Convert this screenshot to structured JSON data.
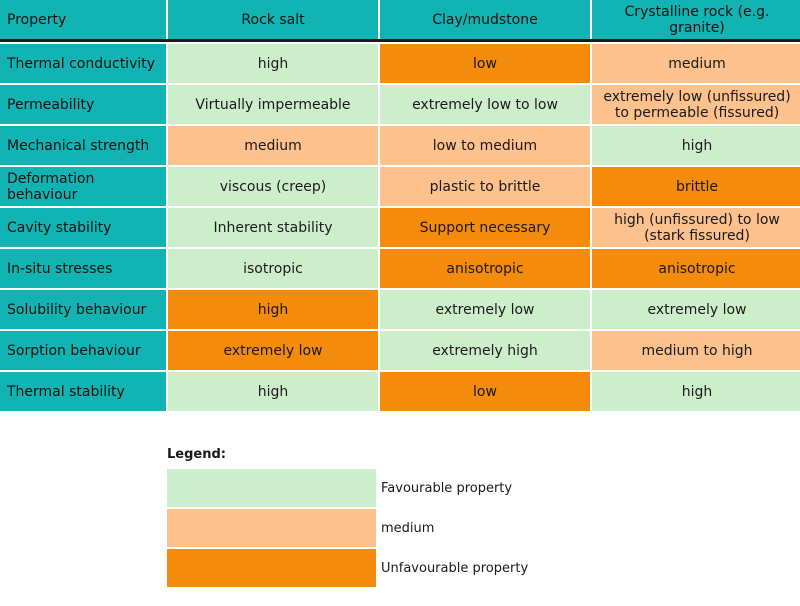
{
  "headers": [
    "Property",
    "Rock salt",
    "Clay/mudstone",
    "Crystalline rock (e.g. granite)"
  ],
  "rows": [
    {
      "property": "Thermal conductivity",
      "cells": [
        {
          "text": "high",
          "rating": "fav"
        },
        {
          "text": "low",
          "rating": "unf"
        },
        {
          "text": "medium",
          "rating": "med"
        }
      ]
    },
    {
      "property": "Permeability",
      "cells": [
        {
          "text": "Virtually impermeable",
          "rating": "fav"
        },
        {
          "text": "extremely low to low",
          "rating": "fav"
        },
        {
          "text": "extremely low (unfissured) to permeable (fissured)",
          "rating": "med"
        }
      ]
    },
    {
      "property": "Mechanical strength",
      "cells": [
        {
          "text": "medium",
          "rating": "med"
        },
        {
          "text": "low to medium",
          "rating": "med"
        },
        {
          "text": "high",
          "rating": "fav"
        }
      ]
    },
    {
      "property": "Deformation behaviour",
      "cells": [
        {
          "text": "viscous (creep)",
          "rating": "fav"
        },
        {
          "text": "plastic to brittle",
          "rating": "med"
        },
        {
          "text": "brittle",
          "rating": "unf"
        }
      ]
    },
    {
      "property": "Cavity stability",
      "cells": [
        {
          "text": "Inherent stability",
          "rating": "fav"
        },
        {
          "text": "Support necessary",
          "rating": "unf"
        },
        {
          "text": "high (unfissured) to low (stark fissured)",
          "rating": "med"
        }
      ]
    },
    {
      "property": "In-situ stresses",
      "cells": [
        {
          "text": "isotropic",
          "rating": "fav"
        },
        {
          "text": "anisotropic",
          "rating": "unf"
        },
        {
          "text": "anisotropic",
          "rating": "unf"
        }
      ]
    },
    {
      "property": "Solubility behaviour",
      "cells": [
        {
          "text": "high",
          "rating": "unf"
        },
        {
          "text": "extremely low",
          "rating": "fav"
        },
        {
          "text": "extremely low",
          "rating": "fav"
        }
      ]
    },
    {
      "property": "Sorption behaviour",
      "cells": [
        {
          "text": "extremely low",
          "rating": "unf"
        },
        {
          "text": "extremely high",
          "rating": "fav"
        },
        {
          "text": "medium to high",
          "rating": "med"
        }
      ]
    },
    {
      "property": "Thermal stability",
      "cells": [
        {
          "text": "high",
          "rating": "fav"
        },
        {
          "text": "low",
          "rating": "unf"
        },
        {
          "text": "high",
          "rating": "fav"
        }
      ]
    }
  ],
  "legend": {
    "title": "Legend:",
    "items": [
      {
        "label": "Favourable property",
        "rating": "fav"
      },
      {
        "label": "medium",
        "rating": "med"
      },
      {
        "label": "Unfavourable property",
        "rating": "unf"
      }
    ]
  },
  "colors": {
    "header": "#11b3b3",
    "favourable": "#cdeecb",
    "medium": "#fcc18c",
    "unfavourable": "#f48b0c"
  }
}
